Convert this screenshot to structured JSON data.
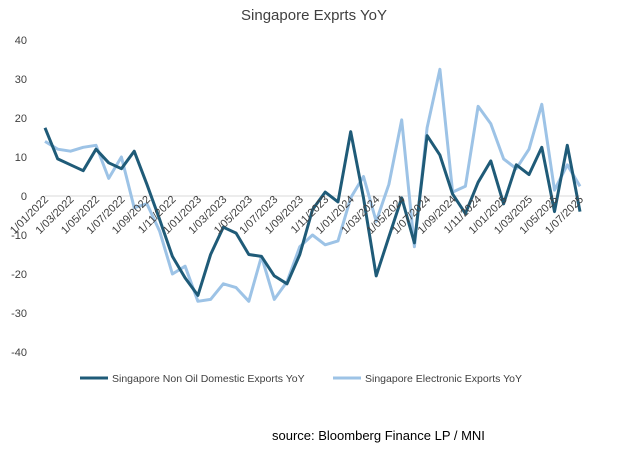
{
  "chart_data": {
    "type": "line",
    "title": "Singapore Exprts YoY",
    "ylim": [
      -40,
      40
    ],
    "yticks": [
      40,
      30,
      20,
      10,
      0,
      -10,
      -20,
      -30,
      -40
    ],
    "xtick_labels": [
      "1/01/2022",
      "1/03/2022",
      "1/05/2022",
      "1/07/2022",
      "1/09/2022",
      "1/11/2022",
      "1/01/2023",
      "1/03/2023",
      "1/05/2023",
      "1/07/2023",
      "1/09/2023",
      "1/11/2023",
      "1/01/2024",
      "1/03/2024",
      "1/05/2024",
      "1/07/2024",
      "1/09/2024",
      "1/11/2024",
      "1/01/2025",
      "1/03/2025",
      "1/05/2025",
      "1/07/2025"
    ],
    "x": [
      "2022-01",
      "2022-02",
      "2022-03",
      "2022-04",
      "2022-05",
      "2022-06",
      "2022-07",
      "2022-08",
      "2022-09",
      "2022-10",
      "2022-11",
      "2022-12",
      "2023-01",
      "2023-02",
      "2023-03",
      "2023-04",
      "2023-05",
      "2023-06",
      "2023-07",
      "2023-08",
      "2023-09",
      "2023-10",
      "2023-11",
      "2023-12",
      "2024-01",
      "2024-02",
      "2024-03",
      "2024-04",
      "2024-05",
      "2024-06",
      "2024-07",
      "2024-08",
      "2024-09",
      "2024-10",
      "2024-11",
      "2024-12",
      "2025-01",
      "2025-02",
      "2025-03",
      "2025-04",
      "2025-05",
      "2025-06",
      "2025-07"
    ],
    "series": [
      {
        "name": "Singapore Non Oil Domestic Exports YoY",
        "color": "#1f5b78",
        "values": [
          17.5,
          9.5,
          8,
          6.5,
          12,
          8.5,
          7,
          11.5,
          3,
          -6,
          -15.5,
          -21,
          -25.5,
          -15,
          -8,
          -9.5,
          -15,
          -15.5,
          -20.5,
          -22.5,
          -15,
          -3.5,
          1,
          -1.5,
          16.5,
          -0.5,
          -20.5,
          -10.5,
          -0.5,
          -12,
          15.5,
          10.5,
          0.5,
          -4.5,
          3.5,
          9,
          -2,
          8,
          5.5,
          12.5,
          -4,
          13,
          -4
        ]
      },
      {
        "name": "Singapore Electronic Exports YoY",
        "color": "#9dc3e6",
        "values": [
          14,
          12,
          11.5,
          12.5,
          13,
          4.5,
          10,
          -3,
          -2,
          -9,
          -20,
          -18,
          -27,
          -26.5,
          -22.5,
          -23.5,
          -27,
          -15.5,
          -26.5,
          -22,
          -13,
          -10,
          -12.5,
          -11.5,
          -0.5,
          5,
          -6.5,
          3,
          19.5,
          -13,
          17.5,
          32.5,
          1,
          2.5,
          23,
          18.5,
          9.5,
          7,
          12,
          23.5,
          1.5,
          8,
          2.5
        ]
      }
    ],
    "legend_position": "bottom",
    "grid": false
  },
  "footer": {
    "source": "source: Bloomberg Finance LP / MNI"
  }
}
